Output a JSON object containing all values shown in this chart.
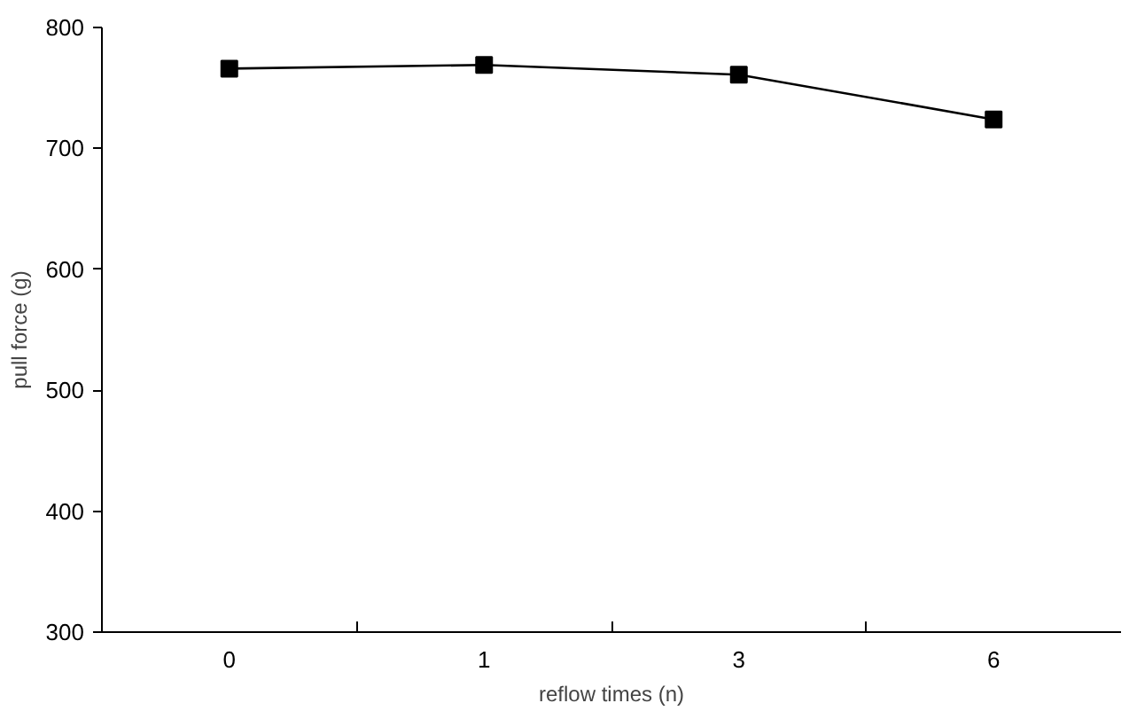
{
  "chart_data": {
    "type": "line",
    "xlabel": "reflow times (n)",
    "ylabel": "pull force (g)",
    "categories": [
      "0",
      "1",
      "3",
      "6"
    ],
    "series": [
      {
        "color": "#000000",
        "values": [
          766,
          769,
          761,
          724
        ]
      }
    ],
    "ylim": [
      300,
      800
    ],
    "yticks": [
      300,
      400,
      500,
      600,
      700,
      800
    ],
    "marker": "square",
    "line_style": "solid",
    "grid": false
  }
}
